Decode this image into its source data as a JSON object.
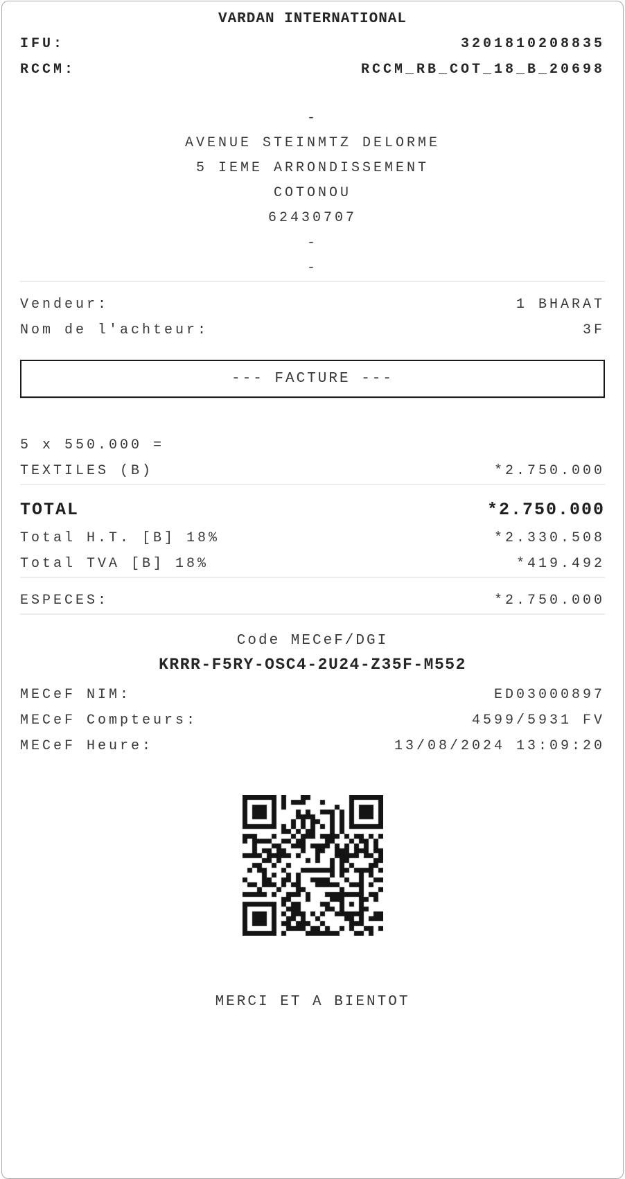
{
  "receipt": {
    "store_name": "VARDAN INTERNATIONAL",
    "ifu": {
      "label": "IFU:",
      "value": "3201810208835"
    },
    "rccm": {
      "label": "RCCM:",
      "value": "RCCM_RB_COT_18_B_20698"
    },
    "address_lines": [
      "-",
      "AVENUE STEINMTZ DELORME",
      "5 IEME ARRONDISSEMENT",
      "COTONOU",
      "62430707",
      "-",
      "-"
    ],
    "vendor": {
      "label": "Vendeur:",
      "value": "1 BHARAT"
    },
    "buyer": {
      "label": "Nom de l'achteur:",
      "value": "3F"
    },
    "banner": "--- FACTURE ---",
    "item": {
      "qty_line": "5 x 550.000 =",
      "name": "TEXTILES (B)",
      "amount": "*2.750.000"
    },
    "total": {
      "label": "TOTAL",
      "value": "*2.750.000"
    },
    "total_ht": {
      "label": "Total H.T. [B] 18%",
      "value": "*2.330.508"
    },
    "total_tva": {
      "label": "Total TVA [B] 18%",
      "value": "*419.492"
    },
    "payment": {
      "label": "ESPECES:",
      "value": "*2.750.000"
    },
    "mecef": {
      "title": "Code MECeF/DGI",
      "code": "KRRR-F5RY-OSC4-2U24-Z35F-M552",
      "nim": {
        "label": "MECeF NIM:",
        "value": "ED03000897"
      },
      "compteurs": {
        "label": "MECeF Compteurs:",
        "value": "4599/5931 FV"
      },
      "heure": {
        "label": "MECeF Heure:",
        "value": "13/08/2024 13:09:20"
      }
    },
    "qr_icon": "qr-code",
    "footer": "MERCI ET A BIENTOT",
    "colors": {
      "text": "#383838",
      "text_bold": "#262626",
      "divider": "#ececec",
      "card_border": "#a8a8a8",
      "banner_border": "#1a1a1a",
      "qr": "#141414"
    }
  }
}
